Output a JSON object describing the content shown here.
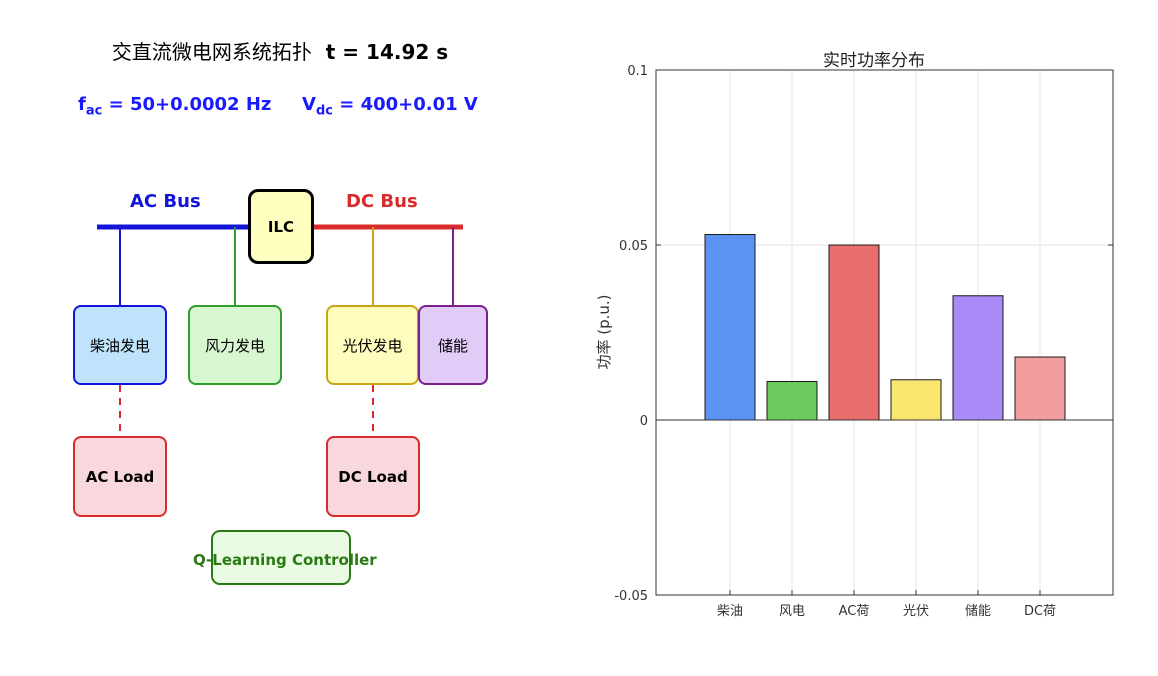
{
  "diagram": {
    "title_cn": "交直流微电网系统拓扑",
    "title_time": "t = 14.92 s",
    "fac": {
      "symbol": "f",
      "sub": "ac",
      "value": "= 50+0.0002 Hz"
    },
    "vdc": {
      "symbol": "V",
      "sub": "dc",
      "value": "= 400+0.01 V"
    },
    "ac_bus_label": "AC Bus",
    "dc_bus_label": "DC Bus",
    "ilc": "ILC",
    "diesel": "柴油发电",
    "wind": "风力发电",
    "pv": "光伏发电",
    "storage": "储能",
    "ac_load": "AC Load",
    "dc_load": "DC Load",
    "controller": "Q-Learning Controller",
    "colors": {
      "ac": "#1414d9",
      "dc": "#d92b2b",
      "wind": "#2e9e2e",
      "pv": "#c9a516",
      "storage": "#7a1f8c",
      "controller": "#2a7a14"
    }
  },
  "chart_data": {
    "type": "bar",
    "title": "实时功率分布",
    "ylabel": "功率 (p.u.)",
    "xlabel": "",
    "categories": [
      "柴油",
      "风电",
      "AC荷",
      "光伏",
      "储能",
      "DC荷"
    ],
    "values": [
      0.053,
      0.011,
      0.05,
      0.0115,
      0.0355,
      0.018
    ],
    "colors": [
      "#5b93f5",
      "#6cc95b",
      "#e86e6e",
      "#f9e66e",
      "#a98af7",
      "#f29e9e"
    ],
    "ylim": [
      -0.05,
      0.1
    ],
    "yticks": [
      "0.1",
      "0.05",
      "0",
      "-0.05"
    ],
    "grid": true
  }
}
